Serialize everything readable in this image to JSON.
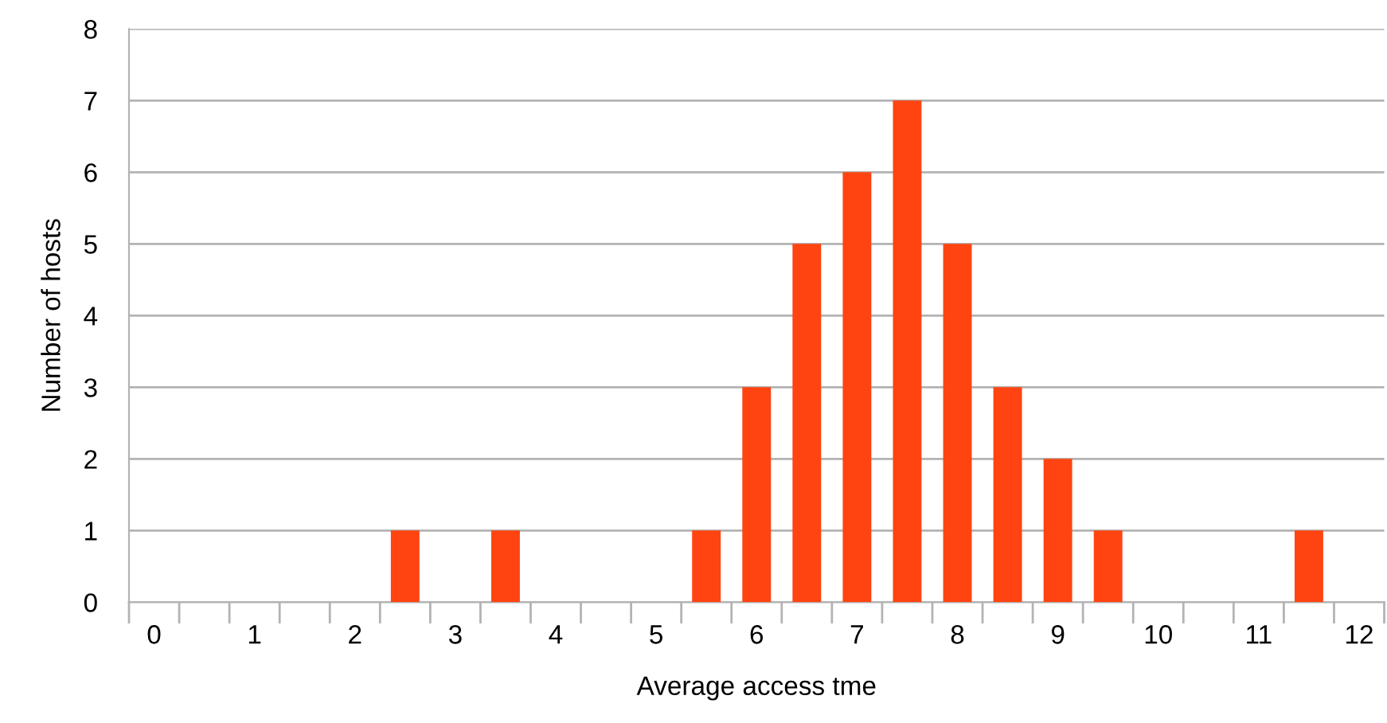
{
  "chart_data": {
    "type": "bar",
    "xlabel": "Average access tme",
    "ylabel": "Number of hosts",
    "categories": [
      "0",
      null,
      "1",
      null,
      "2",
      null,
      "3",
      null,
      "4",
      null,
      "5",
      null,
      "6",
      null,
      "7",
      null,
      "8",
      null,
      "9",
      null,
      "10",
      null,
      "11",
      null,
      "12"
    ],
    "values": [
      0,
      0,
      0,
      0,
      0,
      1,
      0,
      1,
      0,
      0,
      0,
      1,
      3,
      5,
      6,
      7,
      5,
      3,
      2,
      1,
      0,
      0,
      0,
      1,
      0
    ],
    "color": "#ff4411",
    "ylim": [
      0,
      8
    ],
    "yticks": [
      0,
      1,
      2,
      3,
      4,
      5,
      6,
      7,
      8
    ],
    "grid": "y"
  }
}
